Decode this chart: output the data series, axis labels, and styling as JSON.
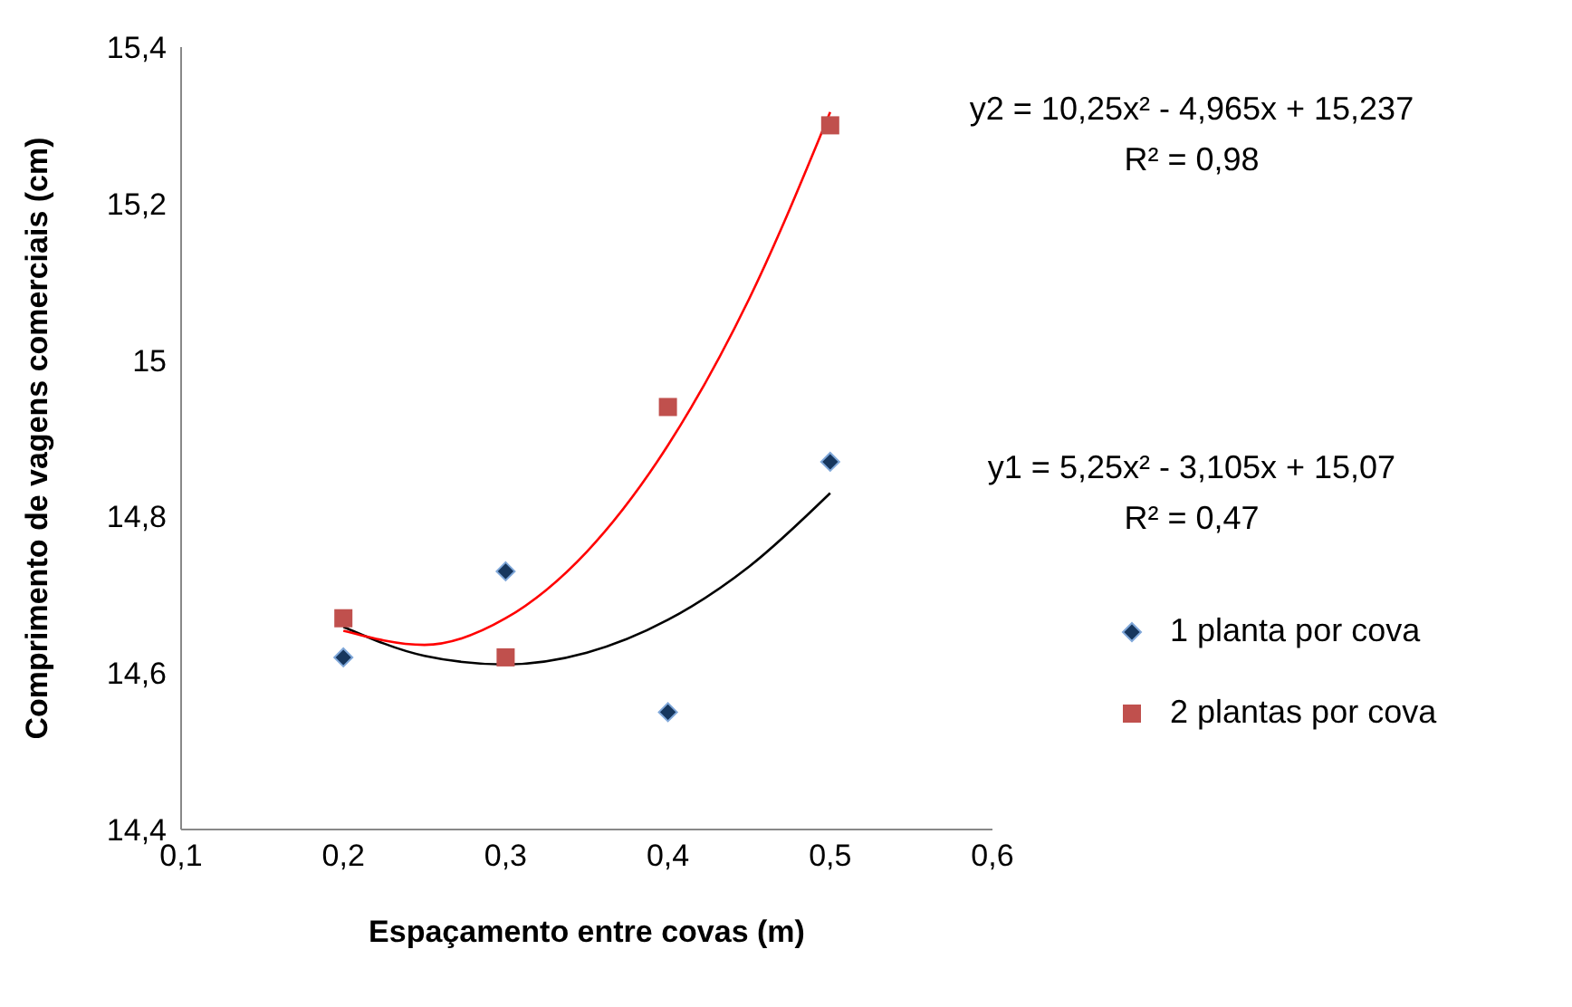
{
  "chart_data": {
    "type": "scatter",
    "xlabel": "Espaçamento entre covas (m)",
    "ylabel": "Comprimento de vagens comerciais (cm)",
    "xlim": [
      0.1,
      0.6
    ],
    "xticks": [
      {
        "value": 0.1,
        "label": "0,1"
      },
      {
        "value": 0.2,
        "label": "0,2"
      },
      {
        "value": 0.3,
        "label": "0,3"
      },
      {
        "value": 0.4,
        "label": "0,4"
      },
      {
        "value": 0.5,
        "label": "0,5"
      },
      {
        "value": 0.6,
        "label": "0,6"
      }
    ],
    "ylim": [
      14.4,
      15.4
    ],
    "yticks": [
      {
        "value": 14.4,
        "label": "14,4"
      },
      {
        "value": 14.6,
        "label": "14,6"
      },
      {
        "value": 14.8,
        "label": "14,8"
      },
      15,
      {
        "value": 15.2,
        "label": "15,2"
      },
      {
        "value": 15.4,
        "label": "15,4"
      }
    ],
    "grid": false,
    "legend": "right",
    "series": [
      {
        "name": "1 planta por cova",
        "marker": "diamond",
        "color": "#17375e",
        "x": [
          0.2,
          0.3,
          0.4,
          0.5
        ],
        "values": [
          14.62,
          14.73,
          14.55,
          14.87
        ]
      },
      {
        "name": "2 plantas por cova",
        "marker": "square",
        "color": "#c0504d",
        "x": [
          0.2,
          0.3,
          0.4,
          0.5
        ],
        "values": [
          14.67,
          14.62,
          14.94,
          15.3
        ]
      },
      {
        "type": "line",
        "marker": "none",
        "color": "#000000",
        "x": [
          0.2,
          0.25,
          0.3,
          0.35,
          0.4,
          0.45,
          0.5
        ],
        "values": [
          14.659,
          14.622,
          14.611,
          14.626,
          14.668,
          14.736,
          14.83
        ]
      },
      {
        "type": "line",
        "marker": "none",
        "color": "#ff0000",
        "x": [
          0.2,
          0.25,
          0.3,
          0.35,
          0.4,
          0.45,
          0.5
        ],
        "values": [
          14.654,
          14.636,
          14.67,
          14.755,
          14.891,
          15.078,
          15.317
        ]
      }
    ],
    "annotations": [
      "y2 = 10,25x² - 4,965x + 15,237",
      "R² = 0,98",
      "y1 = 5,25x² - 3,105x + 15,07",
      "R² = 0,47"
    ]
  }
}
